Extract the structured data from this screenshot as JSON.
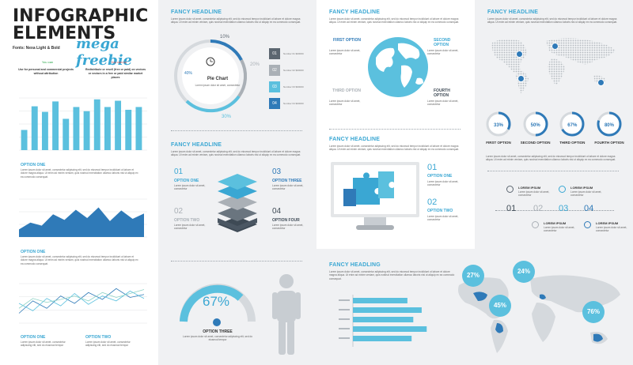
{
  "title": {
    "line1": "INFOGRAPHIC",
    "line2": "ELEMENTS",
    "freebie": "mega freebie",
    "fonts": "Fonts: Nexa Light & Bold"
  },
  "use": {
    "yes_label": "You can",
    "no_label": "You cannot",
    "yes_text": "Use for personal and commercial projects without attribution",
    "no_text": "Redistribute or resell (free or paid) on vectors or vectors in a free or paid similar market places"
  },
  "lorem": "Lorem ipsum dolor sit amet, consectetur adipiscing elit, sed do eiusmod tempor incididunt ut labore et dolore magna aliqua. Ut enim ad minim veniam, quis nostrud exercitation ullamco laboris nisi ut aliquip ex ea commodo consequat.",
  "lorem_short": "Lorem ipsum dolor sit amet, consectetur adipiscing elit, sed do eiusmod tempor",
  "lorem_tiny": "Lorem ipsum dolor sit amet, consectetur",
  "col1": {
    "option_one_a": "OPTION ONE",
    "option_one_b": "OPTION ONE",
    "option_one_c": "OPTION ONE",
    "option_two": "OPTION TWO"
  },
  "col2": {
    "headline1": "FANCY HEADLINE",
    "pie_title": "Pie Chart",
    "pct_10": "10%",
    "pct_20": "20%",
    "pct_30": "30%",
    "pct_40": "40%",
    "legend": [
      {
        "num": "01",
        "text": "Number 01 $00000",
        "color": "#5c6670"
      },
      {
        "num": "02",
        "text": "Number 02 $00000",
        "color": "#aab0b6"
      },
      {
        "num": "03",
        "text": "Number 03 $00000",
        "color": "#5bc0de"
      },
      {
        "num": "04",
        "text": "Number 04 $00000",
        "color": "#2f7ab8"
      }
    ],
    "headline2": "FANCY HEADLINE",
    "layers": [
      {
        "num": "01",
        "label": "OPTION ONE"
      },
      {
        "num": "02",
        "label": "OPTION TWO"
      },
      {
        "num": "03",
        "label": "OPTION THREE"
      },
      {
        "num": "04",
        "label": "OPTION FOUR"
      }
    ],
    "gauge_value": "67%",
    "gauge_label": "OPTION THREE"
  },
  "col3": {
    "headline1": "FANCY HEADLINE",
    "first": "FIRST OPTION",
    "second": "SECOND OPTION",
    "third": "THIRD OPTION",
    "fourth": "FOURTH OPTION",
    "headline2": "FANCY HEADLINE",
    "opt1_num": "01",
    "opt1_label": "OPTION ONE",
    "opt2_num": "02",
    "opt2_label": "OPTION TWO",
    "headline3": "FANCY HEADLING"
  },
  "col4": {
    "headline1": "FANCY HEADLINE",
    "rings": [
      {
        "value": "33%",
        "label": "FIRST OPTION",
        "pct": 0.33
      },
      {
        "value": "50%",
        "label": "SECOND OPTION",
        "pct": 0.5
      },
      {
        "value": "67%",
        "label": "THIRD OPTION",
        "pct": 0.67
      },
      {
        "value": "80%",
        "label": "FOURTH OPTION",
        "pct": 0.8
      }
    ],
    "timeline": [
      "01",
      "02",
      "03",
      "04"
    ],
    "lorem_ipsum": "LOREM IPSUM",
    "map_pcts": [
      "27%",
      "24%",
      "45%",
      "76%"
    ]
  },
  "chart_data": [
    {
      "type": "bar",
      "values": [
        29,
        63,
        55,
        70,
        45,
        62,
        56,
        73,
        62,
        71,
        58,
        62
      ],
      "ylim": [
        0,
        75
      ]
    },
    {
      "type": "area",
      "values": [
        20,
        38,
        30,
        60,
        45,
        72,
        50,
        78,
        42,
        70,
        48,
        62
      ],
      "ylim": [
        0,
        100
      ]
    },
    {
      "type": "line",
      "series": [
        {
          "values": [
            20,
            45,
            30,
            55,
            40,
            62,
            48,
            70,
            52,
            58
          ]
        },
        {
          "values": [
            40,
            25,
            50,
            35,
            60,
            38,
            55,
            45,
            65,
            50
          ]
        },
        {
          "values": [
            30,
            50,
            42,
            48,
            55,
            45,
            62,
            52,
            60,
            68
          ]
        }
      ]
    },
    {
      "type": "bar",
      "orientation": "horizontal",
      "values": [
        65,
        82,
        72,
        88,
        70
      ]
    }
  ]
}
